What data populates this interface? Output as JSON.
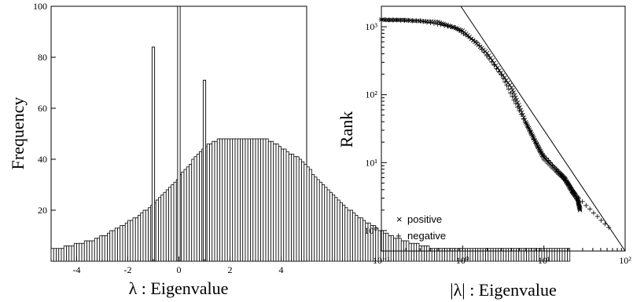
{
  "chart_data": [
    {
      "type": "bar",
      "xlabel": "λ : Eigenvalue",
      "ylabel": "Frequency",
      "xlim": [
        -5,
        5
      ],
      "ylim": [
        0,
        100
      ],
      "grid": false,
      "x_ticks": [
        "-4",
        "-2",
        "0",
        "2",
        "4"
      ],
      "y_ticks": [
        "20",
        "40",
        "60",
        "80",
        "100"
      ],
      "bin_width": 0.1,
      "values": [
        5,
        5,
        5,
        5,
        5,
        6,
        6,
        6,
        6,
        7,
        7,
        7,
        7,
        8,
        8,
        8,
        8,
        9,
        9,
        10,
        10,
        10,
        11,
        12,
        12,
        13,
        13,
        14,
        14,
        15,
        16,
        16,
        17,
        17,
        18,
        19,
        20,
        20,
        21,
        22,
        23,
        24,
        25,
        26,
        27,
        28,
        29,
        30,
        31,
        32,
        34,
        35,
        36,
        37,
        38,
        40,
        41,
        42,
        43,
        44,
        45,
        46,
        46,
        47,
        47,
        48,
        48,
        48,
        48,
        48,
        48,
        48,
        48,
        48,
        48,
        48,
        48,
        48,
        48,
        48,
        48,
        48,
        48,
        48,
        48,
        47,
        47,
        46,
        46,
        45,
        44,
        44,
        43,
        42,
        42,
        41,
        41,
        40,
        39,
        38,
        37,
        36,
        34,
        33,
        32,
        31,
        30,
        29,
        28,
        27,
        26,
        25,
        24,
        23,
        22,
        21,
        20,
        20,
        19,
        18,
        17,
        17,
        16,
        15,
        15,
        14,
        14,
        13,
        12,
        12,
        11,
        11,
        10,
        10,
        9,
        9,
        9,
        8,
        8,
        8,
        7,
        7,
        7,
        7,
        6,
        6,
        6,
        6,
        5,
        5,
        5,
        5,
        5,
        5,
        5,
        5,
        5,
        5,
        5,
        5,
        5,
        5,
        5,
        5,
        5,
        5,
        5,
        5,
        5,
        5,
        5,
        5,
        5,
        5,
        5,
        5,
        5,
        5,
        5,
        5,
        5,
        5,
        5,
        5,
        5,
        5,
        5,
        5,
        5,
        5,
        5,
        5,
        5,
        5,
        5,
        5,
        5,
        5,
        5,
        5,
        5,
        5,
        5
      ],
      "spikes": [
        {
          "x": -1,
          "value": 84
        },
        {
          "x": 0,
          "value": 100
        },
        {
          "x": 1,
          "value": 71
        }
      ]
    },
    {
      "type": "scatter",
      "xlabel": "|λ| : Eigenvalue",
      "ylabel": "Rank",
      "xscale": "log",
      "yscale": "log",
      "xlim": [
        0.1,
        100
      ],
      "ylim": [
        0.5,
        2000
      ],
      "grid": false,
      "x_ticks": [
        "10⁻¹",
        "10⁰",
        "10¹",
        "10²"
      ],
      "y_ticks": [
        "10⁰",
        "10¹",
        "10²",
        "10³"
      ],
      "legend_position": "bottom-left",
      "series": [
        {
          "name": "positive",
          "marker": "×",
          "points": [
            [
              0.1,
              1300
            ],
            [
              0.2,
              1280
            ],
            [
              0.5,
              1200
            ],
            [
              1.0,
              900
            ],
            [
              2.0,
              420
            ],
            [
              4.0,
              130
            ],
            [
              6.0,
              40
            ],
            [
              8.0,
              20
            ],
            [
              10.0,
              12
            ],
            [
              14.0,
              8
            ],
            [
              18.0,
              6
            ],
            [
              22.0,
              4
            ],
            [
              26.0,
              3
            ],
            [
              28.0,
              2
            ]
          ]
        },
        {
          "name": "negative",
          "marker": "+",
          "points": [
            [
              0.1,
              1310
            ],
            [
              0.3,
              1250
            ],
            [
              0.8,
              1000
            ],
            [
              1.5,
              600
            ],
            [
              3.0,
              200
            ],
            [
              5.0,
              60
            ],
            [
              9.0,
              15
            ],
            [
              16.0,
              7
            ],
            [
              20.0,
              5
            ],
            [
              24.0,
              3.5
            ],
            [
              70.0,
              1
            ]
          ]
        }
      ],
      "fit_line": {
        "x": [
          0.95,
          100
        ],
        "y": [
          2000,
          0.5
        ]
      }
    }
  ]
}
